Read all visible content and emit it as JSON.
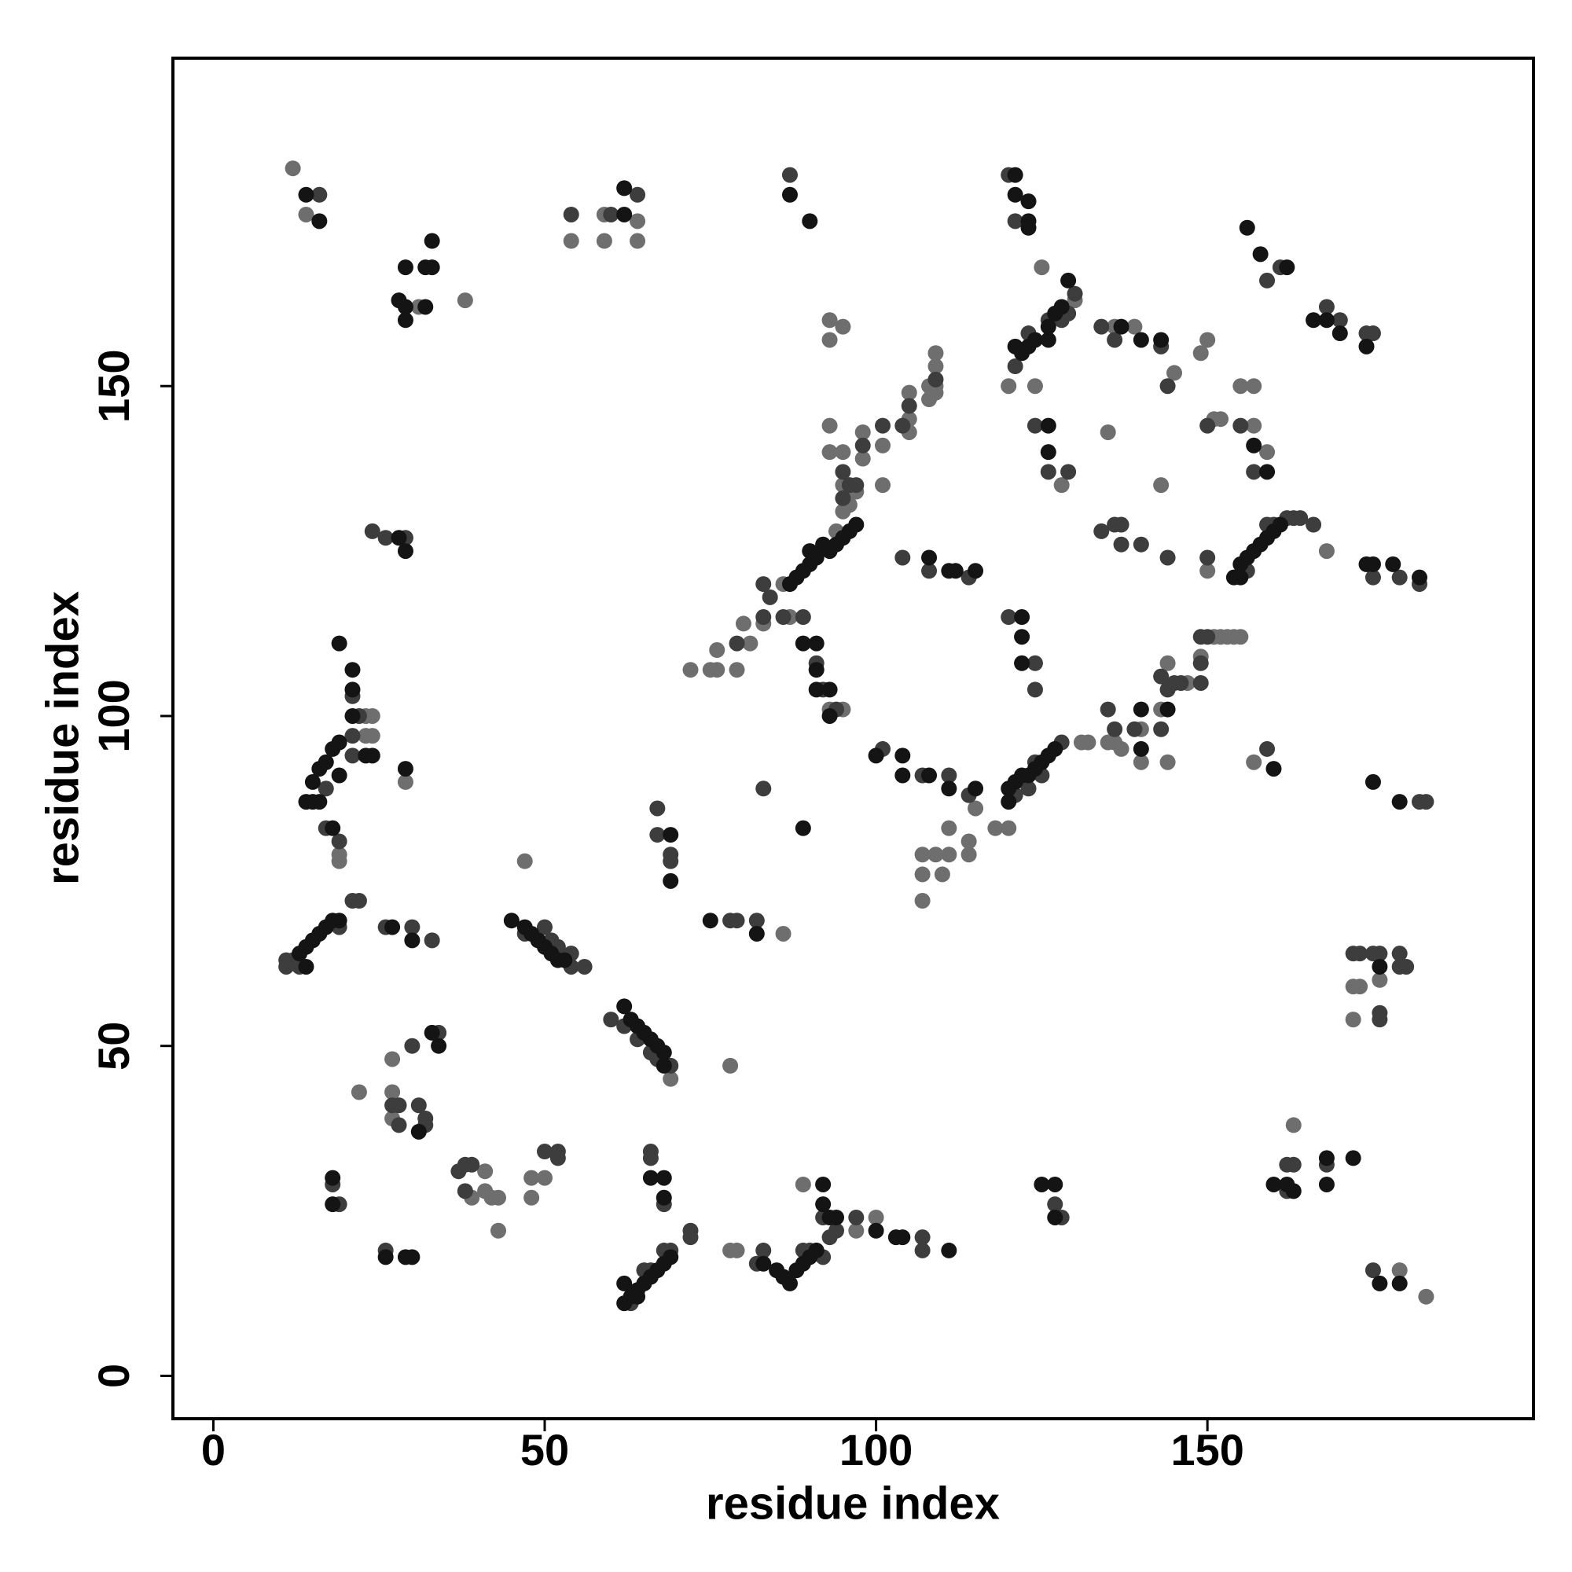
{
  "chart_data": {
    "type": "scatter",
    "xlabel": "residue index",
    "ylabel": "residue index",
    "xlim": [
      -6.1,
      199.2
    ],
    "ylim": [
      -6.5,
      199.7
    ],
    "xticks": [
      0,
      50,
      100,
      150
    ],
    "yticks": [
      0,
      50,
      100,
      150
    ],
    "grid": false,
    "series": [
      {
        "color": "#6e6e6e",
        "x": [
          12,
          14,
          38,
          31,
          54,
          59,
          59,
          64,
          64,
          125,
          130,
          124,
          120,
          139,
          136,
          150,
          149,
          145,
          151,
          152,
          155,
          157,
          159,
          157,
          128,
          135,
          143,
          93,
          95,
          93,
          109,
          109,
          109,
          108,
          109,
          108,
          105,
          105,
          105,
          101,
          98,
          98,
          95,
          93,
          93,
          95,
          101,
          95,
          96,
          97,
          86,
          94,
          83,
          87,
          80,
          81,
          79,
          76,
          75,
          72,
          76,
          95,
          93,
          157,
          144,
          131,
          132,
          135,
          136,
          137,
          140,
          140,
          144,
          143,
          147,
          151,
          152,
          153,
          154,
          155,
          149,
          150,
          168,
          107,
          107,
          107,
          109,
          111,
          110,
          111,
          114,
          114,
          115,
          118,
          120,
          23,
          24,
          23,
          24,
          19,
          19,
          29,
          47,
          78,
          69,
          86,
          27,
          22,
          27,
          27,
          39,
          41,
          41,
          42,
          43,
          43,
          48,
          50,
          48,
          163,
          172,
          173,
          172,
          176,
          79,
          78,
          89,
          97,
          100,
          183,
          179
        ],
        "values": [
          183,
          176,
          163,
          162,
          172,
          176,
          172,
          175,
          172,
          168,
          163,
          150,
          150,
          159,
          159,
          157,
          155,
          152,
          145,
          145,
          150,
          150,
          140,
          144,
          135,
          143,
          135,
          160,
          159,
          157,
          155,
          153,
          149,
          150,
          150,
          148,
          149,
          145,
          143,
          141,
          143,
          139,
          135,
          144,
          140,
          140,
          135,
          131,
          132,
          134,
          120,
          128,
          114,
          115,
          114,
          111,
          107,
          107,
          107,
          107,
          110,
          101,
          101,
          93,
          93,
          96,
          96,
          96,
          96,
          95,
          98,
          93,
          108,
          101,
          105,
          112,
          112,
          112,
          112,
          112,
          109,
          122,
          125,
          79,
          76,
          72,
          79,
          79,
          76,
          83,
          79,
          81,
          86,
          83,
          83,
          100,
          100,
          97,
          97,
          79,
          78,
          90,
          78,
          47,
          45,
          67,
          48,
          43,
          43,
          39,
          27,
          31,
          28,
          27,
          27,
          22,
          30,
          30,
          27,
          38,
          59,
          59,
          54,
          60,
          19,
          19,
          29,
          22,
          24,
          12,
          16
        ]
      },
      {
        "color": "#3d3d3d",
        "x": [
          16,
          54,
          60,
          64,
          87,
          120,
          121,
          159,
          161,
          168,
          174,
          175,
          170,
          130,
          128,
          129,
          126,
          123,
          121,
          134,
          136,
          143,
          144,
          150,
          155,
          157,
          124,
          126,
          129,
          109,
          105,
          104,
          101,
          98,
          96,
          97,
          95,
          95,
          83,
          84,
          83,
          86,
          79,
          89,
          91,
          92,
          94,
          104,
          108,
          114,
          120,
          124,
          124,
          101,
          107,
          111,
          114,
          128,
          124,
          125,
          123,
          121,
          135,
          136,
          139,
          143,
          144,
          145,
          146,
          149,
          143,
          149,
          149,
          150,
          160,
          162,
          163,
          164,
          166,
          159,
          156,
          137,
          140,
          144,
          134,
          136,
          137,
          150,
          175,
          179,
          182,
          159,
          182,
          183,
          83,
          21,
          22,
          21,
          21,
          17,
          17,
          19,
          21,
          22,
          11,
          12,
          13,
          11,
          19,
          26,
          30,
          33,
          24,
          26,
          29,
          50,
          51,
          52,
          54,
          47,
          54,
          56,
          60,
          62,
          64,
          66,
          67,
          69,
          67,
          67,
          69,
          69,
          78,
          79,
          82,
          34,
          30,
          27,
          28,
          28,
          31,
          32,
          32,
          37,
          38,
          39,
          38,
          50,
          52,
          52,
          19,
          18,
          26,
          66,
          66,
          68,
          69,
          68,
          65,
          66,
          63,
          72,
          72,
          82,
          83,
          89,
          90,
          92,
          92,
          94,
          93,
          97,
          107,
          107,
          127,
          128,
          162,
          163,
          162,
          168,
          172,
          173,
          175,
          176,
          176,
          176,
          179,
          179,
          180,
          175
        ],
        "values": [
          179,
          176,
          176,
          179,
          182,
          182,
          175,
          166,
          168,
          162,
          158,
          158,
          160,
          164,
          160,
          161,
          160,
          158,
          153,
          159,
          157,
          156,
          150,
          144,
          144,
          137,
          144,
          137,
          137,
          151,
          147,
          144,
          144,
          141,
          135,
          135,
          133,
          137,
          120,
          118,
          115,
          115,
          111,
          115,
          108,
          104,
          101,
          124,
          122,
          121,
          115,
          108,
          104,
          95,
          91,
          91,
          88,
          96,
          93,
          91,
          89,
          88,
          101,
          98,
          98,
          98,
          104,
          105,
          105,
          105,
          106,
          108,
          112,
          112,
          129,
          130,
          130,
          130,
          129,
          129,
          122,
          129,
          126,
          124,
          128,
          129,
          126,
          124,
          121,
          121,
          120,
          95,
          87,
          87,
          89,
          103,
          100,
          97,
          94,
          89,
          83,
          81,
          72,
          72,
          63,
          63,
          62,
          62,
          68,
          68,
          68,
          66,
          128,
          127,
          127,
          68,
          66,
          65,
          64,
          67,
          62,
          62,
          54,
          53,
          51,
          49,
          48,
          47,
          86,
          82,
          79,
          78,
          69,
          69,
          69,
          52,
          50,
          41,
          41,
          38,
          41,
          39,
          38,
          31,
          32,
          32,
          28,
          34,
          34,
          33,
          26,
          29,
          19,
          34,
          33,
          26,
          19,
          19,
          16,
          16,
          11,
          22,
          21,
          17,
          19,
          19,
          19,
          18,
          24,
          22,
          21,
          24,
          21,
          19,
          26,
          24,
          32,
          32,
          28,
          32,
          64,
          64,
          64,
          64,
          55,
          54,
          64,
          62,
          62,
          16
        ]
      },
      {
        "color": "#141414",
        "x": [
          14,
          16,
          29,
          32,
          33,
          33,
          28,
          29,
          32,
          29,
          62,
          62,
          87,
          90,
          121,
          121,
          123,
          123,
          123,
          156,
          158,
          162,
          166,
          168,
          170,
          174,
          129,
          122,
          123,
          124,
          126,
          126,
          127,
          128,
          121,
          137,
          140,
          143,
          126,
          126,
          157,
          159,
          97,
          96,
          95,
          94,
          93,
          91,
          90,
          89,
          88,
          87,
          90,
          92,
          89,
          91,
          91,
          91,
          93,
          93,
          108,
          111,
          112,
          115,
          122,
          122,
          122,
          100,
          104,
          104,
          108,
          111,
          115,
          120,
          121,
          122,
          123,
          124,
          125,
          126,
          127,
          120,
          140,
          140,
          144,
          155,
          156,
          157,
          158,
          159,
          160,
          161,
          154,
          155,
          175,
          174,
          178,
          182,
          160,
          175,
          179,
          89,
          19,
          21,
          21,
          21,
          23,
          24,
          19,
          18,
          17,
          16,
          15,
          14,
          15,
          16,
          19,
          18,
          29,
          13,
          14,
          15,
          16,
          17,
          18,
          19,
          14,
          27,
          30,
          28,
          29,
          45,
          47,
          48,
          49,
          50,
          51,
          52,
          53,
          62,
          63,
          64,
          65,
          66,
          67,
          68,
          68,
          69,
          69,
          82,
          75,
          33,
          34,
          31,
          18,
          18,
          26,
          29,
          30,
          66,
          68,
          68,
          62,
          63,
          64,
          65,
          66,
          67,
          68,
          69,
          62,
          64,
          83,
          85,
          86,
          87,
          88,
          89,
          90,
          91,
          92,
          92,
          93,
          94,
          100,
          103,
          104,
          111,
          125,
          127,
          127,
          160,
          162,
          163,
          168,
          168,
          176,
          176,
          179,
          172
        ],
        "values": [
          179,
          175,
          168,
          168,
          168,
          172,
          163,
          162,
          162,
          160,
          180,
          176,
          179,
          175,
          182,
          179,
          178,
          175,
          174,
          174,
          170,
          168,
          160,
          160,
          158,
          156,
          166,
          155,
          156,
          157,
          159,
          157,
          161,
          162,
          156,
          159,
          157,
          157,
          140,
          144,
          141,
          137,
          129,
          128,
          127,
          126,
          125,
          124,
          123,
          122,
          121,
          120,
          125,
          126,
          111,
          111,
          107,
          104,
          104,
          100,
          124,
          122,
          122,
          122,
          115,
          112,
          108,
          94,
          94,
          91,
          91,
          89,
          89,
          89,
          90,
          91,
          91,
          92,
          93,
          94,
          95,
          87,
          101,
          95,
          101,
          123,
          124,
          125,
          126,
          127,
          128,
          129,
          121,
          121,
          123,
          123,
          123,
          121,
          92,
          90,
          87,
          83,
          111,
          107,
          104,
          100,
          94,
          94,
          96,
          95,
          93,
          92,
          90,
          87,
          87,
          87,
          91,
          83,
          92,
          64,
          65,
          66,
          67,
          68,
          69,
          69,
          62,
          68,
          66,
          127,
          125,
          69,
          68,
          67,
          66,
          65,
          64,
          63,
          63,
          56,
          54,
          53,
          52,
          51,
          50,
          49,
          47,
          82,
          75,
          67,
          69,
          52,
          50,
          37,
          30,
          26,
          18,
          18,
          18,
          30,
          30,
          27,
          11,
          12,
          13,
          14,
          15,
          16,
          17,
          18,
          14,
          12,
          17,
          16,
          15,
          14,
          16,
          17,
          18,
          19,
          29,
          26,
          24,
          24,
          22,
          21,
          21,
          19,
          29,
          29,
          24,
          29,
          29,
          28,
          33,
          29,
          62,
          14,
          14,
          33
        ]
      }
    ]
  }
}
